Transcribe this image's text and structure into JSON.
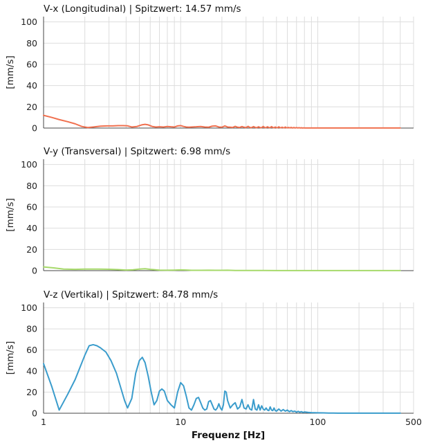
{
  "figure": {
    "xlabel": "Frequenz [Hz]"
  },
  "chart_data": [
    {
      "type": "line",
      "title": "V-x (Longitudinal) | Spitzwert: 14.57 mm/s",
      "ylabel": "[mm/s]",
      "xscale": "log",
      "xlim": [
        1,
        500
      ],
      "ylim": [
        0,
        105
      ],
      "yticks": [
        "0",
        "20",
        "40",
        "60",
        "80",
        "100"
      ],
      "grid": true,
      "color": "#f0704f",
      "series": [
        {
          "x": [
            1,
            1.15,
            1.3,
            1.5,
            1.7,
            1.9,
            2.1,
            2.3,
            2.6,
            2.9,
            3.2,
            3.5,
            3.8,
            4.1,
            4.4,
            4.8,
            5.2,
            5.5,
            5.8,
            6.2,
            6.6,
            7.0,
            7.5,
            8.0,
            8.5,
            9.0,
            9.5,
            10.0,
            10.5,
            11.0,
            11.5,
            12.0,
            13.0,
            14.0,
            15.0,
            16.0,
            17.0,
            18.0,
            19.0,
            20.0,
            21.0,
            22.0,
            23.0,
            24.0,
            25.0,
            26.0,
            27.0,
            28.0,
            29.0,
            30.0,
            31.0,
            32.0,
            33.0,
            34.0,
            35.0,
            36.0,
            37.0,
            38.0,
            39.0,
            40.0,
            41.0,
            42.0,
            43.0,
            44.0,
            45.0,
            46.0,
            47.0,
            48.0,
            49.0,
            50.0,
            51.0,
            52.0,
            53.0,
            54.0,
            55.0,
            56.0,
            57.0,
            58.0,
            59.0,
            60.0,
            61.0,
            62.0,
            63.0,
            64.0,
            65.0,
            66.0,
            67.0,
            68.0,
            69.0,
            70.0,
            71.0,
            72.0,
            73.0,
            74.0,
            75.0,
            76.0,
            77.0,
            78.0,
            79.0,
            80.0,
            90.0,
            100.0,
            150.0,
            200.0,
            300.0,
            400.0
          ],
          "y": [
            12.0,
            10.0,
            8.0,
            6.0,
            4.0,
            1.5,
            0.5,
            1.0,
            1.8,
            2.0,
            2.0,
            2.3,
            2.3,
            2.1,
            1.0,
            1.5,
            3.0,
            3.5,
            3.0,
            1.5,
            1.0,
            1.2,
            1.0,
            1.5,
            1.2,
            1.0,
            2.0,
            2.3,
            1.5,
            1.0,
            0.8,
            1.0,
            1.2,
            1.5,
            1.0,
            0.8,
            1.8,
            2.0,
            1.0,
            0.8,
            2.0,
            1.0,
            0.8,
            0.6,
            1.6,
            0.8,
            0.6,
            1.4,
            0.8,
            0.5,
            1.6,
            0.6,
            0.5,
            1.4,
            0.6,
            0.4,
            1.2,
            0.5,
            0.4,
            1.5,
            0.5,
            0.4,
            1.2,
            0.5,
            0.4,
            1.4,
            0.5,
            0.3,
            1.0,
            0.4,
            0.3,
            1.2,
            0.4,
            0.3,
            0.8,
            0.3,
            0.2,
            1.0,
            0.3,
            0.2,
            0.6,
            0.3,
            0.2,
            0.6,
            0.2,
            0.2,
            0.5,
            0.2,
            0.2,
            0.4,
            0.2,
            0.2,
            0.3,
            0.2,
            0.1,
            0.3,
            0.1,
            0.1,
            0.2,
            0.1,
            0.1,
            0.1,
            0.05,
            0.05,
            0.05,
            0.05
          ]
        }
      ]
    },
    {
      "type": "line",
      "title": "V-y (Transversal) | Spitzwert: 6.98 mm/s",
      "ylabel": "[mm/s]",
      "xscale": "log",
      "xlim": [
        1,
        500
      ],
      "ylim": [
        0,
        105
      ],
      "yticks": [
        "0",
        "20",
        "40",
        "60",
        "80",
        "100"
      ],
      "grid": true,
      "color": "#a6d96a",
      "series": [
        {
          "x": [
            1,
            1.2,
            1.4,
            1.7,
            2.0,
            2.5,
            3.0,
            3.5,
            4.0,
            4.5,
            5.0,
            5.5,
            6.0,
            7.0,
            8.0,
            9.0,
            10.0,
            11.0,
            12.0,
            14.0,
            16.0,
            18.0,
            20.0,
            22.0,
            25.0,
            30.0,
            40.0,
            50.0,
            70.0,
            100.0,
            150.0,
            200.0,
            300.0,
            400.0
          ],
          "y": [
            3.5,
            2.5,
            1.5,
            1.2,
            1.5,
            1.5,
            1.3,
            1.0,
            0.6,
            0.8,
            1.5,
            1.8,
            1.2,
            0.5,
            0.4,
            0.5,
            0.7,
            0.6,
            0.3,
            0.3,
            0.4,
            0.3,
            0.3,
            0.4,
            0.2,
            0.2,
            0.2,
            0.1,
            0.1,
            0.1,
            0.05,
            0.05,
            0.05,
            0.05
          ]
        }
      ]
    },
    {
      "type": "line",
      "title": "V-z (Vertikal) | Spitzwert: 84.78 mm/s",
      "ylabel": "[mm/s]",
      "xlabel": "Frequenz [Hz]",
      "xscale": "log",
      "xlim": [
        1,
        500
      ],
      "ylim": [
        0,
        105
      ],
      "yticks": [
        "0",
        "20",
        "40",
        "60",
        "80",
        "100"
      ],
      "xticks": [
        "1",
        "10",
        "100",
        "500"
      ],
      "grid": true,
      "color": "#3a9ccc",
      "series": [
        {
          "x": [
            1.0,
            1.15,
            1.3,
            1.5,
            1.7,
            1.85,
            2.0,
            2.15,
            2.3,
            2.45,
            2.6,
            2.85,
            3.1,
            3.4,
            3.7,
            3.9,
            4.1,
            4.4,
            4.7,
            5.0,
            5.25,
            5.5,
            5.8,
            6.1,
            6.4,
            6.7,
            7.0,
            7.3,
            7.6,
            8.0,
            8.5,
            9.0,
            9.5,
            10.0,
            10.5,
            11.0,
            11.5,
            12.0,
            12.5,
            13.0,
            13.5,
            14.0,
            14.5,
            15.0,
            15.5,
            16.0,
            16.5,
            17.0,
            17.5,
            18.0,
            18.5,
            19.0,
            19.5,
            20.0,
            20.5,
            21.0,
            21.5,
            22.0,
            23.0,
            24.0,
            25.0,
            26.0,
            27.0,
            28.0,
            29.0,
            30.0,
            31.0,
            32.0,
            33.0,
            34.0,
            35.0,
            36.0,
            37.0,
            38.0,
            39.0,
            40.0,
            41.0,
            42.0,
            43.0,
            44.0,
            45.0,
            46.0,
            47.0,
            48.0,
            49.0,
            50.0,
            52.0,
            54.0,
            56.0,
            58.0,
            60.0,
            62.0,
            64.0,
            66.0,
            68.0,
            70.0,
            72.0,
            74.0,
            76.0,
            78.0,
            80.0,
            85.0,
            90.0,
            95.0,
            100.0,
            110.0,
            120.0,
            130.0,
            140.0,
            150.0,
            170.0,
            200.0,
            250.0,
            300.0,
            350.0,
            400.0
          ],
          "y": [
            47.0,
            25.0,
            3.0,
            18.0,
            32.0,
            44.0,
            55.0,
            64.0,
            65.0,
            64.0,
            62.0,
            58.0,
            50.0,
            38.0,
            22.0,
            12.0,
            5.0,
            14.0,
            38.0,
            50.0,
            53.0,
            48.0,
            35.0,
            20.0,
            8.0,
            12.0,
            21.0,
            23.0,
            21.0,
            12.0,
            8.0,
            5.0,
            20.0,
            29.0,
            26.0,
            16.0,
            5.0,
            3.0,
            8.0,
            14.0,
            15.0,
            10.0,
            5.0,
            3.0,
            4.0,
            11.0,
            12.0,
            8.0,
            4.0,
            3.0,
            5.0,
            9.0,
            5.0,
            3.0,
            8.0,
            21.0,
            20.0,
            12.0,
            5.0,
            8.0,
            10.0,
            4.0,
            6.0,
            13.0,
            5.0,
            4.0,
            8.0,
            4.0,
            3.0,
            13.0,
            4.0,
            3.0,
            8.0,
            3.0,
            7.0,
            4.0,
            3.0,
            5.0,
            3.0,
            2.5,
            6.0,
            3.0,
            2.5,
            5.0,
            2.5,
            2.0,
            4.0,
            2.0,
            3.5,
            2.0,
            3.0,
            1.5,
            2.5,
            1.5,
            2.0,
            1.0,
            1.8,
            1.0,
            1.5,
            0.8,
            1.2,
            0.8,
            0.6,
            0.5,
            0.4,
            0.3,
            0.2,
            0.15,
            0.1,
            0.08,
            0.05,
            0.05,
            0.05,
            0.05,
            0.05,
            0.05
          ]
        }
      ]
    }
  ]
}
